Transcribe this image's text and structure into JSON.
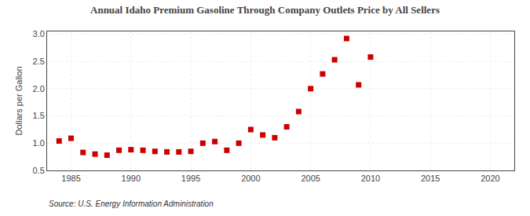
{
  "chart_data": {
    "type": "scatter",
    "title": "Annual Idaho Premium Gasoline Through Company Outlets Price by All Sellers",
    "ylabel": "Dollars per Gallon",
    "annotations": [
      "Source: U.S. Energy Information Administration"
    ],
    "x": [
      1984,
      1985,
      1986,
      1987,
      1988,
      1989,
      1990,
      1991,
      1992,
      1993,
      1994,
      1995,
      1996,
      1997,
      1998,
      1999,
      2000,
      2001,
      2002,
      2003,
      2004,
      2005,
      2006,
      2007,
      2008,
      2009,
      2010
    ],
    "values": [
      1.04,
      1.09,
      0.83,
      0.8,
      0.78,
      0.87,
      0.88,
      0.87,
      0.85,
      0.84,
      0.84,
      0.85,
      1.0,
      1.03,
      0.87,
      1.0,
      1.25,
      1.15,
      1.1,
      1.3,
      1.58,
      2.0,
      2.27,
      2.53,
      2.92,
      2.07,
      2.58
    ],
    "color": "#cc0000",
    "marker": "square",
    "xlim": [
      1983,
      2022
    ],
    "xticks": [
      1985,
      1990,
      1995,
      2000,
      2005,
      2010,
      2015,
      2020
    ],
    "ylim": [
      0.5,
      3.05
    ],
    "yticks": [
      0.5,
      {
        "value": 1.0,
        "label": "1.0"
      },
      1.5,
      {
        "value": 2.0,
        "label": "2.0"
      },
      2.5,
      {
        "value": 3.0,
        "label": "3.0"
      }
    ],
    "grid": true
  }
}
